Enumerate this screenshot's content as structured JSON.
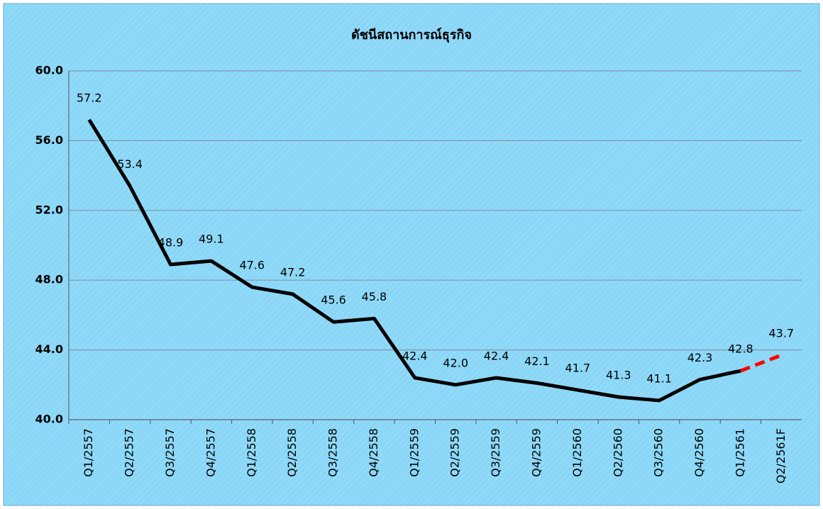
{
  "chart_data": {
    "type": "line",
    "title": "ดัชนีสถานการณ์ธุรกิจ",
    "categories": [
      "Q1/2557",
      "Q2/2557",
      "Q3/2557",
      "Q4/2557",
      "Q1/2558",
      "Q2/2558",
      "Q3/2558",
      "Q4/2558",
      "Q1/2559",
      "Q2/2559",
      "Q3/2559",
      "Q4/2559",
      "Q1/2560",
      "Q2/2560",
      "Q3/2560",
      "Q4/2560",
      "Q1/2561",
      "Q2/2561F"
    ],
    "series": [
      {
        "color": "#000000",
        "dashed": false,
        "values": [
          57.2,
          53.4,
          48.9,
          49.1,
          47.6,
          47.2,
          45.6,
          45.8,
          42.4,
          42.0,
          42.4,
          42.1,
          41.7,
          41.3,
          41.1,
          42.3,
          42.8,
          null
        ],
        "value_labels": [
          "57.2",
          "53.4",
          "48.9",
          "49.1",
          "47.6",
          "47.2",
          "45.6",
          "45.8",
          "42.4",
          "42.0",
          "42.4",
          "42.1",
          "41.7",
          "41.3",
          "41.1",
          "42.3",
          "42.8",
          null
        ]
      },
      {
        "color": "#ff0000",
        "dashed": true,
        "values": [
          null,
          null,
          null,
          null,
          null,
          null,
          null,
          null,
          null,
          null,
          null,
          null,
          null,
          null,
          null,
          null,
          42.8,
          43.7
        ],
        "value_labels": [
          null,
          null,
          null,
          null,
          null,
          null,
          null,
          null,
          null,
          null,
          null,
          null,
          null,
          null,
          null,
          null,
          null,
          "43.7"
        ]
      }
    ],
    "ylim": [
      40,
      60
    ],
    "yticks": [
      {
        "value": 40,
        "label": "40.0"
      },
      {
        "value": 44,
        "label": "44.0"
      },
      {
        "value": 48,
        "label": "48.0"
      },
      {
        "value": 52,
        "label": "52.0"
      },
      {
        "value": 56,
        "label": "56.0"
      },
      {
        "value": 60,
        "label": "60.0"
      }
    ],
    "grid": true
  }
}
